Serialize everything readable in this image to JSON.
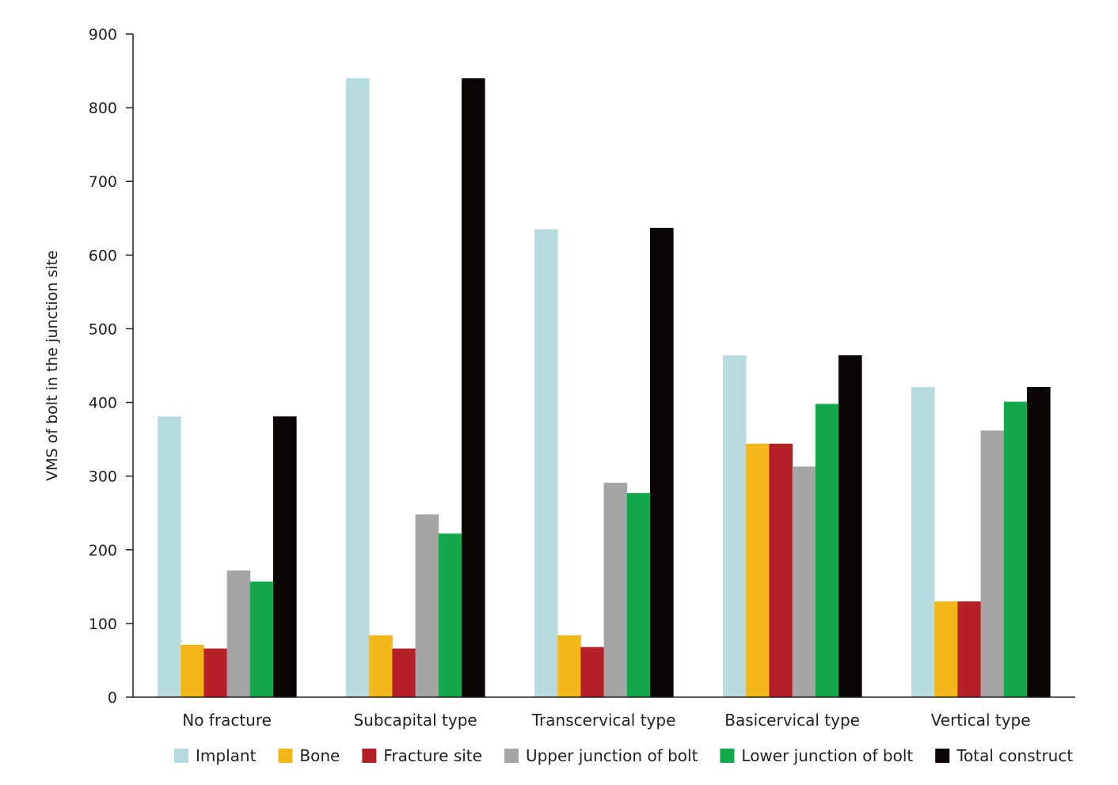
{
  "chart_data": {
    "type": "bar",
    "title": "",
    "xlabel": "",
    "ylabel": "VMS of bolt in the junction site",
    "ylim": [
      0,
      900
    ],
    "yticks": [
      0,
      100,
      200,
      300,
      400,
      500,
      600,
      700,
      800,
      900
    ],
    "grid": false,
    "legend_position": "bottom",
    "categories": [
      "No fracture",
      "Subcapital type",
      "Transcervical type",
      "Basicervical type",
      "Vertical type"
    ],
    "series": [
      {
        "name": "Implant",
        "color": "#b8dbdf",
        "values": [
          381,
          840,
          635,
          464,
          421
        ]
      },
      {
        "name": "Bone",
        "color": "#f3b719",
        "values": [
          71,
          84,
          84,
          344,
          130
        ]
      },
      {
        "name": "Fracture site",
        "color": "#b51f28",
        "values": [
          66,
          66,
          68,
          344,
          130
        ]
      },
      {
        "name": "Upper junction of bolt",
        "color": "#a5a5a5",
        "values": [
          172,
          248,
          291,
          313,
          362
        ]
      },
      {
        "name": "Lower junction of bolt",
        "color": "#14a84c",
        "values": [
          157,
          222,
          277,
          398,
          401
        ]
      },
      {
        "name": "Total construct",
        "color": "#0b0506",
        "values": [
          381,
          840,
          637,
          464,
          421
        ]
      }
    ]
  }
}
